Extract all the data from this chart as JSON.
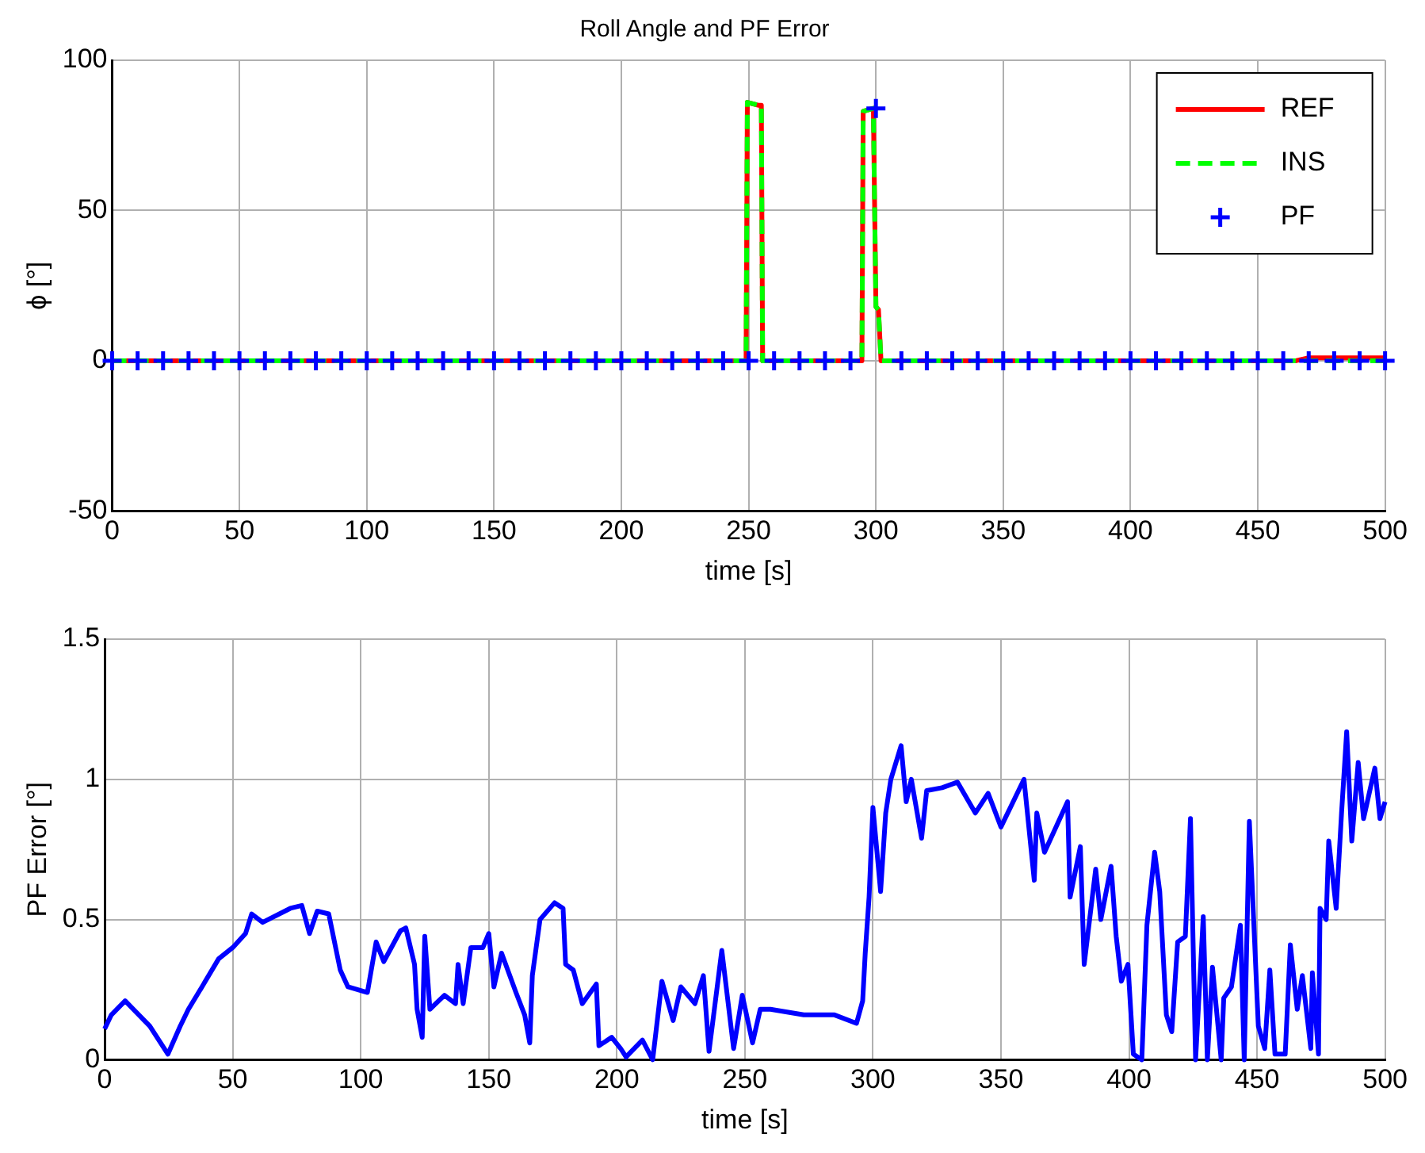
{
  "chart_data": [
    {
      "type": "line",
      "title": "Roll Angle and PF Error",
      "xlabel": "time [s]",
      "ylabel": "ϕ [°]",
      "xlim": [
        0,
        500
      ],
      "xticks": [
        0,
        50,
        100,
        150,
        200,
        250,
        300,
        350,
        400,
        450,
        500
      ],
      "ylim": [
        -50,
        100
      ],
      "yticks": [
        -50,
        0,
        50,
        100
      ],
      "grid": true,
      "legend": "top right",
      "series": [
        {
          "name": "REF",
          "color": "#ff0000",
          "line_style": "solid",
          "marker": "none",
          "x": [
            0,
            249,
            249.5,
            254,
            255,
            255.5,
            294.5,
            295,
            299,
            300,
            301,
            302,
            465,
            470,
            500
          ],
          "values": [
            0,
            0,
            86,
            85,
            85,
            0,
            0,
            83,
            84,
            18,
            17,
            0,
            0,
            1,
            1
          ]
        },
        {
          "name": "INS",
          "color": "#00ff00",
          "line_style": "dashed",
          "marker": "none",
          "x": [
            0,
            249,
            249.5,
            254,
            255,
            255.5,
            294.5,
            295,
            299,
            300,
            301,
            302,
            500
          ],
          "values": [
            0,
            0,
            86,
            85,
            85,
            0,
            0,
            83,
            84,
            18,
            17,
            0,
            0
          ]
        },
        {
          "name": "PF",
          "type": "scatter",
          "color": "#0000ff",
          "marker": "cross",
          "x": [
            0,
            10,
            20,
            30,
            40,
            50,
            60,
            70,
            80,
            90,
            100,
            110,
            120,
            130,
            140,
            150,
            160,
            170,
            180,
            190,
            200,
            210,
            220,
            230,
            240,
            250,
            260,
            270,
            280,
            290,
            300,
            310,
            320,
            330,
            340,
            350,
            360,
            370,
            380,
            390,
            400,
            410,
            420,
            430,
            440,
            450,
            460,
            470,
            480,
            490,
            500
          ],
          "values": [
            0,
            0,
            0,
            0,
            0,
            0,
            0,
            0,
            0,
            0,
            0,
            0,
            0,
            0,
            0,
            0,
            0,
            0,
            0,
            0,
            0,
            0,
            0,
            0,
            0,
            0,
            0,
            0,
            0,
            0,
            84,
            0,
            0,
            0,
            0,
            0,
            0,
            0,
            0,
            0,
            0,
            0,
            0,
            0,
            0,
            0,
            0,
            0,
            0,
            0,
            0
          ]
        }
      ]
    },
    {
      "type": "line",
      "xlabel": "time [s]",
      "ylabel": "PF Error [°]",
      "xlim": [
        0,
        500
      ],
      "xticks": [
        0,
        50,
        100,
        150,
        200,
        250,
        300,
        350,
        400,
        450,
        500
      ],
      "ylim": [
        0,
        1.5
      ],
      "yticks": [
        0,
        0.5,
        1,
        1.5
      ],
      "grid": true,
      "marker": "none",
      "series": [
        {
          "color": "#0000ff",
          "x": [
            0,
            2.6,
            8,
            17.6,
            24.7,
            29.5,
            32.7,
            38,
            44.5,
            50,
            55,
            57.4,
            61.7,
            72.5,
            77,
            80,
            83,
            87.5,
            92,
            95,
            102.6,
            106,
            109,
            115.5,
            117.6,
            121,
            122,
            124,
            125,
            127,
            132.7,
            137,
            138,
            140,
            143,
            147.7,
            150,
            152,
            155,
            160.6,
            164,
            166,
            167,
            170,
            175.7,
            179,
            180,
            183,
            186.5,
            192,
            193,
            198,
            201.5,
            203.6,
            210,
            214,
            217.6,
            222,
            225,
            230.5,
            233.8,
            236,
            241,
            245.6,
            249,
            253,
            256,
            260,
            273,
            285,
            293.6,
            296,
            297,
            298.5,
            300,
            303,
            305,
            307,
            311,
            313,
            315,
            319,
            321,
            327,
            333,
            340,
            345,
            350,
            359,
            363,
            364,
            367,
            376,
            377,
            381,
            382.5,
            387,
            389,
            393,
            395,
            397,
            399.6,
            401.7,
            405,
            407,
            410,
            412,
            414.6,
            416.7,
            419,
            422,
            424,
            426,
            429,
            430.6,
            432.6,
            436,
            437,
            440,
            443.5,
            445,
            447,
            450.5,
            453,
            455,
            457,
            461,
            463,
            465.7,
            467.7,
            471,
            471.6,
            474,
            474.6,
            477,
            478,
            480.9,
            483,
            485,
            487,
            489.5,
            491.6,
            496,
            498,
            500
          ],
          "values": [
            0.11,
            0.16,
            0.21,
            0.12,
            0.02,
            0.12,
            0.18,
            0.26,
            0.36,
            0.4,
            0.45,
            0.52,
            0.49,
            0.54,
            0.55,
            0.45,
            0.53,
            0.52,
            0.32,
            0.26,
            0.24,
            0.42,
            0.35,
            0.46,
            0.47,
            0.34,
            0.18,
            0.08,
            0.44,
            0.18,
            0.23,
            0.2,
            0.34,
            0.2,
            0.4,
            0.4,
            0.45,
            0.26,
            0.38,
            0.24,
            0.16,
            0.06,
            0.3,
            0.5,
            0.56,
            0.54,
            0.34,
            0.32,
            0.2,
            0.27,
            0.05,
            0.08,
            0.04,
            0.01,
            0.07,
            0,
            0.28,
            0.14,
            0.26,
            0.2,
            0.3,
            0.03,
            0.39,
            0.04,
            0.23,
            0.06,
            0.18,
            0.18,
            0.16,
            0.16,
            0.13,
            0.21,
            0.38,
            0.58,
            0.9,
            0.6,
            0.88,
            1,
            1.12,
            0.92,
            1,
            0.79,
            0.96,
            0.97,
            0.99,
            0.88,
            0.95,
            0.83,
            1,
            0.64,
            0.88,
            0.74,
            0.92,
            0.58,
            0.76,
            0.34,
            0.68,
            0.5,
            0.69,
            0.44,
            0.28,
            0.34,
            0.02,
            0,
            0.48,
            0.74,
            0.6,
            0.16,
            0.1,
            0.42,
            0.44,
            0.86,
            0,
            0.51,
            0,
            0.33,
            0,
            0.22,
            0.26,
            0.48,
            0,
            0.85,
            0.12,
            0.04,
            0.32,
            0.02,
            0.02,
            0.41,
            0.18,
            0.3,
            0.04,
            0.31,
            0.02,
            0.54,
            0.5,
            0.78,
            0.54,
            0.88,
            1.17,
            0.78,
            1.06,
            0.86,
            1.04,
            0.86,
            0.92
          ]
        }
      ]
    }
  ]
}
